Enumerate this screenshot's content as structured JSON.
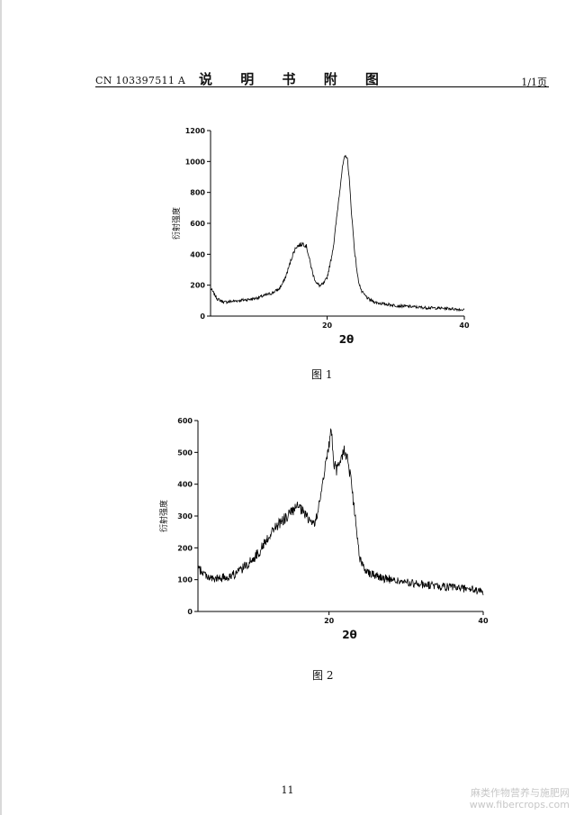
{
  "header": {
    "patent_number": "CN 103397511 A",
    "title": "说 明 书 附 图",
    "page": "1/1页"
  },
  "figures": [
    {
      "caption": "图 1"
    },
    {
      "caption": "图 2"
    }
  ],
  "footer": {
    "page_number": "11"
  },
  "watermark": {
    "line1": "麻类作物营养与施肥网",
    "line2": "www.fibercrops.com"
  },
  "chart_data": [
    {
      "type": "line",
      "xlabel": "2θ",
      "ylabel": "衍射强度",
      "xlim": [
        3,
        40
      ],
      "ylim": [
        0,
        1200
      ],
      "xticks": [
        "20",
        "40"
      ],
      "yticks": [
        "0",
        "200",
        "400",
        "600",
        "800",
        "1000",
        "1200"
      ],
      "series": [
        {
          "x": [
            3,
            4,
            5,
            6,
            7,
            8,
            9,
            10,
            11,
            12,
            13,
            13.5,
            14,
            14.5,
            15,
            15.5,
            16,
            16.5,
            17,
            17.5,
            18,
            18.5,
            19,
            19.5,
            20,
            20.5,
            21,
            21.5,
            22,
            22.3,
            22.6,
            22.8,
            23,
            23.2,
            23.5,
            24,
            24.5,
            25,
            26,
            27,
            28,
            29,
            30,
            32,
            34,
            36,
            38,
            40
          ],
          "y": [
            180,
            110,
            90,
            95,
            100,
            105,
            110,
            120,
            135,
            150,
            175,
            210,
            260,
            330,
            400,
            450,
            460,
            470,
            450,
            350,
            260,
            210,
            195,
            210,
            250,
            350,
            480,
            680,
            880,
            980,
            1030,
            1040,
            1000,
            900,
            700,
            420,
            240,
            160,
            110,
            90,
            80,
            75,
            68,
            62,
            55,
            52,
            48,
            40
          ]
        }
      ]
    },
    {
      "type": "line",
      "xlabel": "2θ",
      "ylabel": "衍射强度",
      "xlim": [
        3,
        40
      ],
      "ylim": [
        0,
        600
      ],
      "xticks": [
        "20",
        "40"
      ],
      "yticks": [
        "0",
        "100",
        "200",
        "300",
        "400",
        "500",
        "600"
      ],
      "series": [
        {
          "x": [
            3,
            4,
            5,
            6,
            7,
            8,
            9,
            10,
            11,
            12,
            13,
            14,
            15,
            16,
            17,
            18,
            18.5,
            19,
            19.5,
            20,
            20.3,
            20.6,
            21,
            21.5,
            22,
            22.5,
            23,
            23.5,
            24,
            25,
            26,
            27,
            28,
            30,
            32,
            34,
            36,
            38,
            40
          ],
          "y": [
            135,
            115,
            100,
            105,
            110,
            120,
            140,
            160,
            190,
            230,
            265,
            285,
            310,
            330,
            300,
            275,
            300,
            380,
            460,
            520,
            575,
            470,
            440,
            480,
            510,
            470,
            380,
            270,
            160,
            125,
            115,
            105,
            100,
            90,
            85,
            80,
            75,
            72,
            60
          ]
        }
      ]
    }
  ]
}
